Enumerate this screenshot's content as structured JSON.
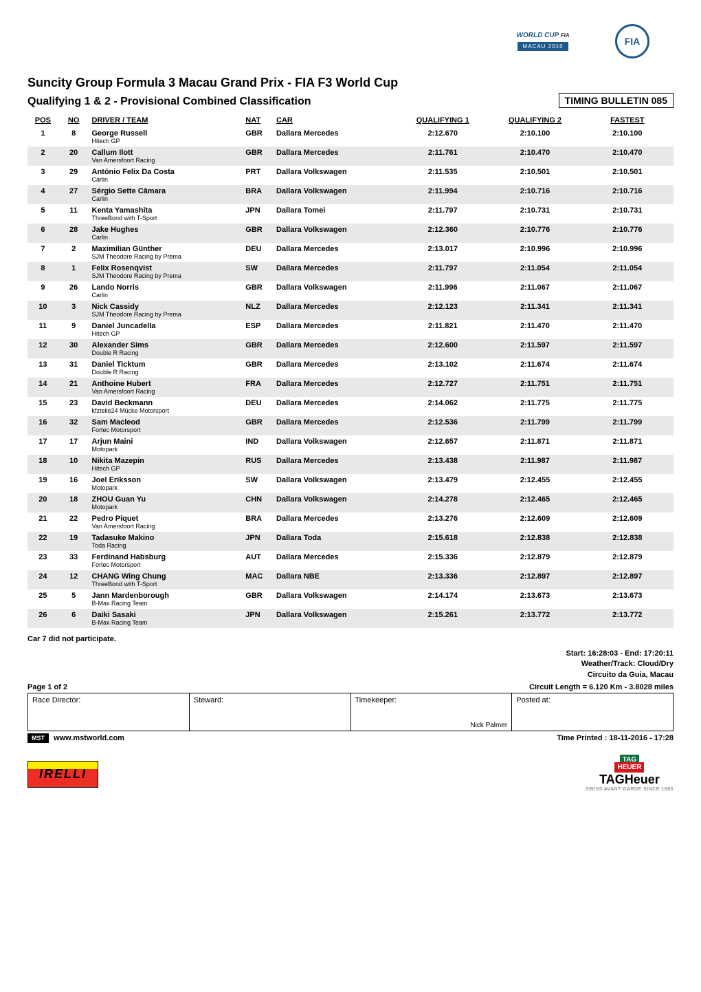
{
  "header": {
    "worldcup_text": "WORLD CUP",
    "fia_small": "FIA",
    "macau_badge": "MACAU 2016",
    "fia_circle": "FIA"
  },
  "titles": {
    "main": "Suncity Group Formula 3 Macau Grand Prix - FIA F3 World Cup",
    "sub": "Qualifying 1 & 2 - Provisional Combined Classification",
    "bulletin": "TIMING BULLETIN 085"
  },
  "columns": {
    "pos": "POS",
    "no": "NO",
    "driver": "DRIVER / TEAM",
    "nat": "NAT",
    "car": "CAR",
    "q1": "QUALIFYING 1",
    "q2": "QUALIFYING 2",
    "fastest": "FASTEST"
  },
  "rows": [
    {
      "pos": "1",
      "no": "8",
      "driver": "George Russell",
      "team": "Hitech GP",
      "nat": "GBR",
      "car": "Dallara Mercedes",
      "q1": "2:12.670",
      "q2": "2:10.100",
      "fastest": "2:10.100"
    },
    {
      "pos": "2",
      "no": "20",
      "driver": "Callum Ilott",
      "team": "Van Amersfoort Racing",
      "nat": "GBR",
      "car": "Dallara Mercedes",
      "q1": "2:11.761",
      "q2": "2:10.470",
      "fastest": "2:10.470"
    },
    {
      "pos": "3",
      "no": "29",
      "driver": "António Felix Da Costa",
      "team": "Carlin",
      "nat": "PRT",
      "car": "Dallara Volkswagen",
      "q1": "2:11.535",
      "q2": "2:10.501",
      "fastest": "2:10.501"
    },
    {
      "pos": "4",
      "no": "27",
      "driver": "Sérgio Sette Câmara",
      "team": "Carlin",
      "nat": "BRA",
      "car": "Dallara Volkswagen",
      "q1": "2:11.994",
      "q2": "2:10.716",
      "fastest": "2:10.716"
    },
    {
      "pos": "5",
      "no": "11",
      "driver": "Kenta Yamashita",
      "team": "ThreeBond with T-Sport",
      "nat": "JPN",
      "car": "Dallara Tomei",
      "q1": "2:11.797",
      "q2": "2:10.731",
      "fastest": "2:10.731"
    },
    {
      "pos": "6",
      "no": "28",
      "driver": "Jake Hughes",
      "team": "Carlin",
      "nat": "GBR",
      "car": "Dallara Volkswagen",
      "q1": "2:12.360",
      "q2": "2:10.776",
      "fastest": "2:10.776"
    },
    {
      "pos": "7",
      "no": "2",
      "driver": "Maximilian Günther",
      "team": "SJM Theodore Racing by Prema",
      "nat": "DEU",
      "car": "Dallara Mercedes",
      "q1": "2:13.017",
      "q2": "2:10.996",
      "fastest": "2:10.996"
    },
    {
      "pos": "8",
      "no": "1",
      "driver": "Felix Rosenqvist",
      "team": "SJM Theodore Racing by Prema",
      "nat": "SW",
      "car": "Dallara Mercedes",
      "q1": "2:11.797",
      "q2": "2:11.054",
      "fastest": "2:11.054"
    },
    {
      "pos": "9",
      "no": "26",
      "driver": "Lando Norris",
      "team": "Carlin",
      "nat": "GBR",
      "car": "Dallara Volkswagen",
      "q1": "2:11.996",
      "q2": "2:11.067",
      "fastest": "2:11.067"
    },
    {
      "pos": "10",
      "no": "3",
      "driver": "Nick Cassidy",
      "team": "SJM Theodore Racing by Prema",
      "nat": "NLZ",
      "car": "Dallara Mercedes",
      "q1": "2:12.123",
      "q2": "2:11.341",
      "fastest": "2:11.341"
    },
    {
      "pos": "11",
      "no": "9",
      "driver": "Daniel Juncadella",
      "team": "Hitech GP",
      "nat": "ESP",
      "car": "Dallara Mercedes",
      "q1": "2:11.821",
      "q2": "2:11.470",
      "fastest": "2:11.470"
    },
    {
      "pos": "12",
      "no": "30",
      "driver": "Alexander Sims",
      "team": "Double R Racing",
      "nat": "GBR",
      "car": "Dallara Mercedes",
      "q1": "2:12.600",
      "q2": "2:11.597",
      "fastest": "2:11.597"
    },
    {
      "pos": "13",
      "no": "31",
      "driver": "Daniel Ticktum",
      "team": "Double R Racing",
      "nat": "GBR",
      "car": "Dallara Mercedes",
      "q1": "2:13.102",
      "q2": "2:11.674",
      "fastest": "2:11.674"
    },
    {
      "pos": "14",
      "no": "21",
      "driver": "Anthoine Hubert",
      "team": "Van Amersfoort Racing",
      "nat": "FRA",
      "car": "Dallara Mercedes",
      "q1": "2:12.727",
      "q2": "2:11.751",
      "fastest": "2:11.751"
    },
    {
      "pos": "15",
      "no": "23",
      "driver": "David Beckmann",
      "team": "kfzteile24 Mücke Motorsport",
      "nat": "DEU",
      "car": "Dallara Mercedes",
      "q1": "2:14.062",
      "q2": "2:11.775",
      "fastest": "2:11.775"
    },
    {
      "pos": "16",
      "no": "32",
      "driver": "Sam Macleod",
      "team": "Fortec Motorsport",
      "nat": "GBR",
      "car": "Dallara Mercedes",
      "q1": "2:12.536",
      "q2": "2:11.799",
      "fastest": "2:11.799"
    },
    {
      "pos": "17",
      "no": "17",
      "driver": "Arjun Maini",
      "team": "Motopark",
      "nat": "IND",
      "car": "Dallara Volkswagen",
      "q1": "2:12.657",
      "q2": "2:11.871",
      "fastest": "2:11.871"
    },
    {
      "pos": "18",
      "no": "10",
      "driver": "Nikita Mazepin",
      "team": "Hitech GP",
      "nat": "RUS",
      "car": "Dallara Mercedes",
      "q1": "2:13.438",
      "q2": "2:11.987",
      "fastest": "2:11.987"
    },
    {
      "pos": "19",
      "no": "16",
      "driver": "Joel Eriksson",
      "team": "Motopark",
      "nat": "SW",
      "car": "Dallara Volkswagen",
      "q1": "2:13.479",
      "q2": "2:12.455",
      "fastest": "2:12.455"
    },
    {
      "pos": "20",
      "no": "18",
      "driver": "ZHOU Guan Yu",
      "team": "Motopark",
      "nat": "CHN",
      "car": "Dallara Volkswagen",
      "q1": "2:14.278",
      "q2": "2:12.465",
      "fastest": "2:12.465"
    },
    {
      "pos": "21",
      "no": "22",
      "driver": "Pedro Piquet",
      "team": "Van Amersfoort Racing",
      "nat": "BRA",
      "car": "Dallara Mercedes",
      "q1": "2:13.276",
      "q2": "2:12.609",
      "fastest": "2:12.609"
    },
    {
      "pos": "22",
      "no": "19",
      "driver": "Tadasuke Makino",
      "team": "Toda Racing",
      "nat": "JPN",
      "car": "Dallara Toda",
      "q1": "2:15.618",
      "q2": "2:12.838",
      "fastest": "2:12.838"
    },
    {
      "pos": "23",
      "no": "33",
      "driver": "Ferdinand Habsburg",
      "team": "Fortec Motorsport",
      "nat": "AUT",
      "car": "Dallara Mercedes",
      "q1": "2:15.336",
      "q2": "2:12.879",
      "fastest": "2:12.879"
    },
    {
      "pos": "24",
      "no": "12",
      "driver": "CHANG Wing Chung",
      "team": "ThreeBond with T-Sport",
      "nat": "MAC",
      "car": "Dallara NBE",
      "q1": "2:13.336",
      "q2": "2:12.897",
      "fastest": "2:12.897"
    },
    {
      "pos": "25",
      "no": "5",
      "driver": "Jann Mardenborough",
      "team": "B-Max Racing Team",
      "nat": "GBR",
      "car": "Dallara Volkswagen",
      "q1": "2:14.174",
      "q2": "2:13.673",
      "fastest": "2:13.673"
    },
    {
      "pos": "26",
      "no": "6",
      "driver": "Daiki Sasaki",
      "team": "B-Max Racing Team",
      "nat": "JPN",
      "car": "Dallara Volkswagen",
      "q1": "2:15.261",
      "q2": "2:13.772",
      "fastest": "2:13.772"
    }
  ],
  "footnote": "Car 7 did not participate.",
  "meta": {
    "start_end": "Start: 16:28:03  -  End: 17:20:11",
    "weather": "Weather/Track: Cloud/Dry",
    "circuit": "Circuito da Guia, Macau",
    "circuit_length": "Circuit Length = 6.120 Km  - 3.8028 miles"
  },
  "page_indicator": "Page 1 of 2",
  "signatures": {
    "race_director": "Race Director:",
    "steward": "Steward:",
    "timekeeper": "Timekeeper:",
    "timekeeper_name": "Nick Palmer",
    "posted_at": "Posted at:"
  },
  "footer": {
    "mst": "MST",
    "website": "www.mstworld.com",
    "printed": "Time Printed : 18-11-2016 - 17:28"
  },
  "bottom_logos": {
    "pirelli": "IRELLI",
    "tag": "TAG",
    "heuer_small": "HEUER",
    "tagheuer": "TAGHeuer",
    "tagline": "SWISS AVANT-GARDE SINCE 1860"
  },
  "styling": {
    "row_even_bg": "#e8e8e8",
    "row_odd_bg": "#ffffff",
    "text_color": "#000000",
    "header_font_size": 11,
    "body_font_size": 11,
    "team_font_size": 9,
    "title_font_size": 18,
    "subtitle_font_size": 16
  }
}
